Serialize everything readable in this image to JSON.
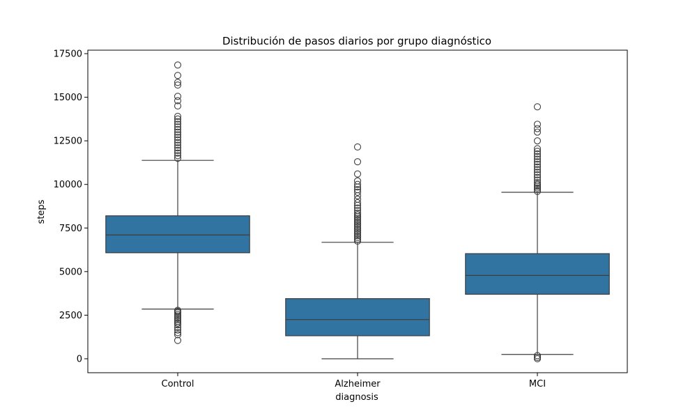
{
  "chart_data": {
    "type": "box",
    "title": "Distribución de pasos diarios por grupo diagnóstico",
    "xlabel": "diagnosis",
    "ylabel": "steps",
    "ylim": [
      -800,
      17700
    ],
    "yticks": [
      0,
      2500,
      5000,
      7500,
      10000,
      12500,
      15000,
      17500
    ],
    "categories": [
      "Control",
      "Alzheimer",
      "MCI"
    ],
    "box_color": "#3274a1",
    "line_color": "#3d3d3d",
    "grid": false,
    "boxes": [
      {
        "category": "Control",
        "whisker_low": 2850,
        "q1": 6080,
        "median": 7100,
        "q3": 8200,
        "whisker_high": 11380,
        "outliers": [
          1050,
          1380,
          1500,
          1650,
          1800,
          1950,
          2050,
          2150,
          2250,
          2350,
          2450,
          2550,
          2650,
          2720,
          2780,
          11500,
          11650,
          11800,
          11950,
          12100,
          12250,
          12400,
          12550,
          12700,
          12850,
          13000,
          13150,
          13300,
          13450,
          13600,
          13750,
          13900,
          14500,
          14800,
          15050,
          15700,
          15850,
          16250,
          16850
        ]
      },
      {
        "category": "Alzheimer",
        "whisker_low": 0,
        "q1": 1320,
        "median": 2250,
        "q3": 3450,
        "whisker_high": 6680,
        "outliers": [
          6750,
          6850,
          6950,
          7050,
          7150,
          7250,
          7350,
          7450,
          7550,
          7650,
          7750,
          7850,
          7950,
          8050,
          8150,
          8250,
          8350,
          8500,
          8650,
          8800,
          8950,
          9150,
          9350,
          9550,
          9700,
          9850,
          10000,
          10200,
          10600,
          11300,
          12150
        ]
      },
      {
        "category": "MCI",
        "whisker_low": 250,
        "q1": 3700,
        "median": 4780,
        "q3": 6030,
        "whisker_high": 9550,
        "outliers": [
          0,
          80,
          180,
          9600,
          9700,
          9800,
          9900,
          10000,
          10100,
          10250,
          10400,
          10550,
          10700,
          10850,
          11000,
          11150,
          11300,
          11450,
          11600,
          11750,
          11900,
          12050,
          12500,
          13000,
          13200,
          13450,
          14450
        ]
      }
    ]
  }
}
